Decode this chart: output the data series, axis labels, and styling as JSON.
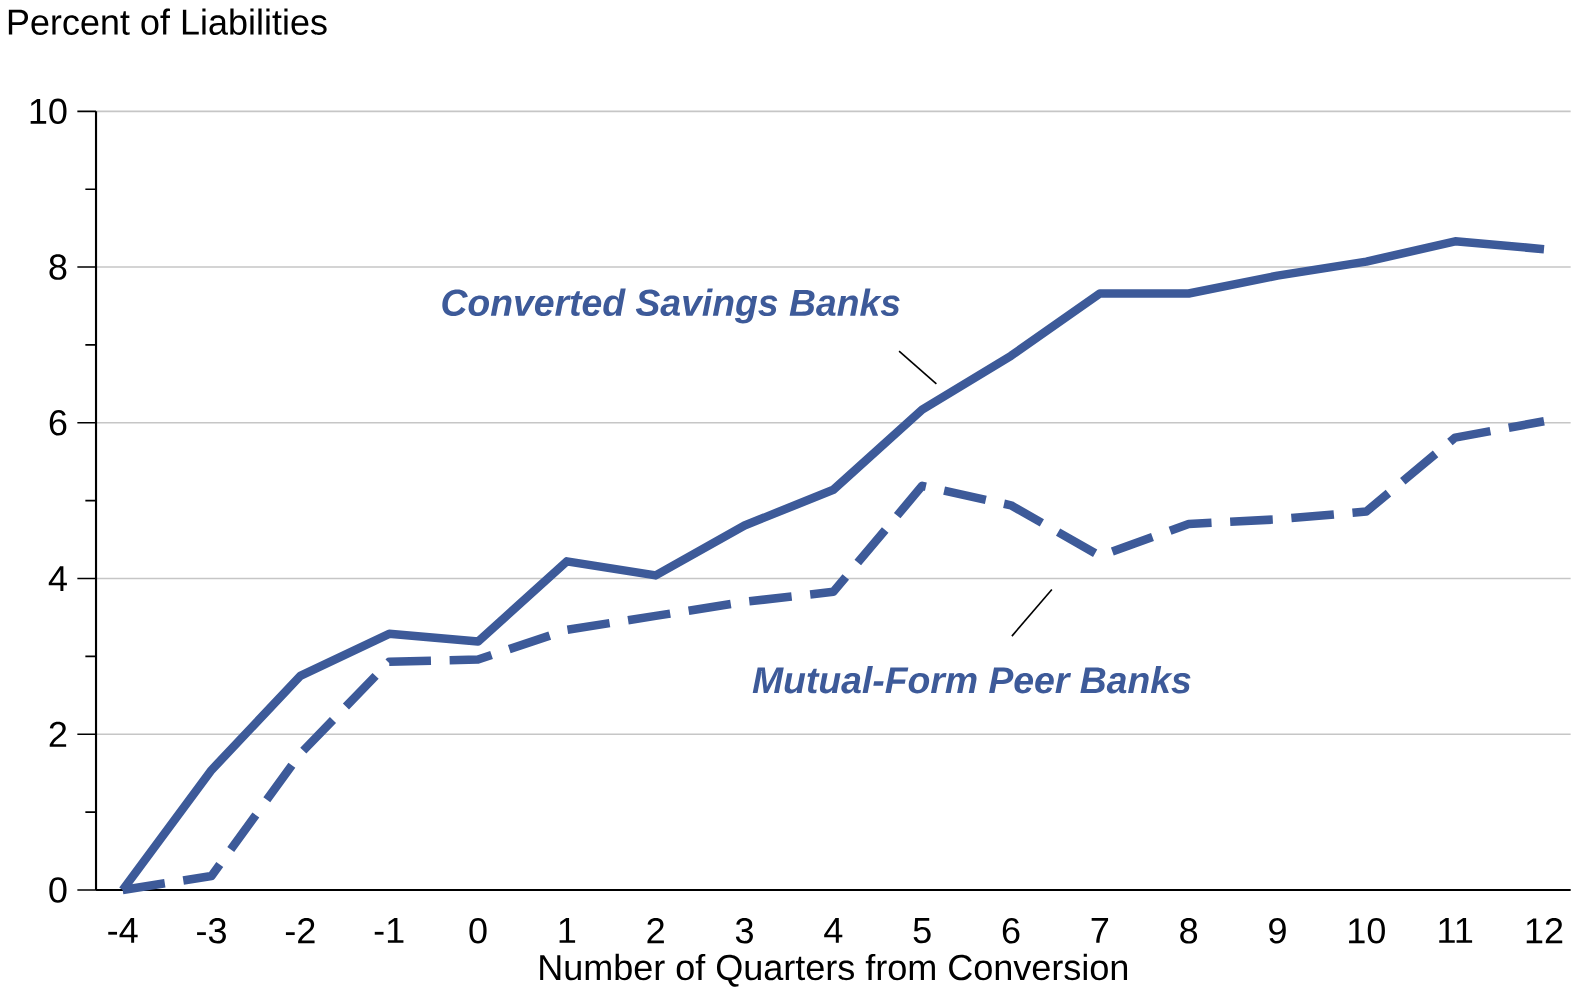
{
  "chart_data": {
    "type": "line",
    "ylabel": "Percent of Liabilities",
    "xlabel": "Number of Quarters from Conversion",
    "x": [
      -4,
      -3,
      -2,
      -1,
      0,
      1,
      2,
      3,
      4,
      5,
      6,
      7,
      8,
      9,
      10,
      11,
      12
    ],
    "series": [
      {
        "color": "#3d5a99",
        "line_style": "solid",
        "values": [
          0,
          1.54,
          2.75,
          3.29,
          3.19,
          4.22,
          4.04,
          4.68,
          5.14,
          6.17,
          6.86,
          7.66,
          7.66,
          7.89,
          8.07,
          8.33,
          8.23
        ]
      },
      {
        "color": "#3d5a99",
        "line_style": "dashed",
        "values": [
          0,
          0.18,
          1.75,
          2.93,
          2.96,
          3.34,
          3.52,
          3.7,
          3.83,
          5.19,
          4.94,
          4.29,
          4.7,
          4.76,
          4.86,
          5.81,
          6.02
        ]
      }
    ],
    "annotations": [
      "Converted Savings Banks",
      "Mutual-Form Peer Banks"
    ],
    "xlim": [
      -4.3,
      12.3
    ],
    "ylim": [
      0,
      10
    ],
    "xticks": [
      -4,
      -3,
      -2,
      -1,
      0,
      1,
      2,
      3,
      4,
      5,
      6,
      7,
      8,
      9,
      10,
      11,
      12
    ],
    "yticks": [
      0,
      {
        "value": 1,
        "label": null
      },
      2,
      {
        "value": 3,
        "label": null
      },
      4,
      {
        "value": 5,
        "label": null
      },
      6,
      {
        "value": 7,
        "label": null
      },
      8,
      {
        "value": 9,
        "label": null
      },
      10
    ],
    "grid": "y",
    "marker": "none"
  }
}
